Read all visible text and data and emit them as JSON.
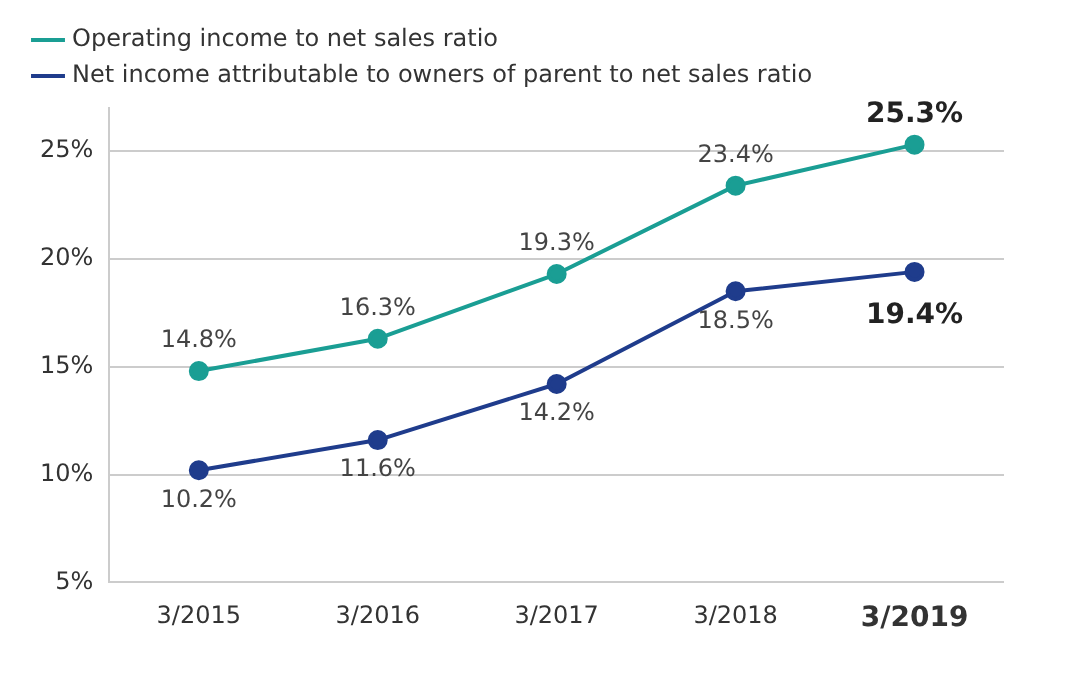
{
  "chart_data": {
    "type": "line",
    "categories": [
      "3/2015",
      "3/2016",
      "3/2017",
      "3/2018",
      "3/2019"
    ],
    "series": [
      {
        "name": "Operating income to net sales ratio",
        "color": "#1a9e94",
        "values": [
          14.8,
          16.3,
          19.3,
          23.4,
          25.3
        ],
        "value_labels": [
          "14.8%",
          "16.3%",
          "19.3%",
          "23.4%",
          "25.3%"
        ]
      },
      {
        "name": "Net income attributable to owners of parent to net sales ratio",
        "color": "#1f3c8c",
        "values": [
          10.2,
          11.6,
          14.2,
          18.5,
          19.4
        ],
        "value_labels": [
          "10.2%",
          "11.6%",
          "14.2%",
          "18.5%",
          "19.4%"
        ]
      }
    ],
    "ylim": [
      5,
      27
    ],
    "yticks": [
      {
        "value": 5,
        "label": "5%"
      },
      {
        "value": 10,
        "label": "10%"
      },
      {
        "value": 15,
        "label": "15%"
      },
      {
        "value": 20,
        "label": "20%"
      },
      {
        "value": 25,
        "label": "25%"
      }
    ],
    "grid": "y",
    "legend": "top left",
    "marker": "circle",
    "line_style": "solid"
  }
}
